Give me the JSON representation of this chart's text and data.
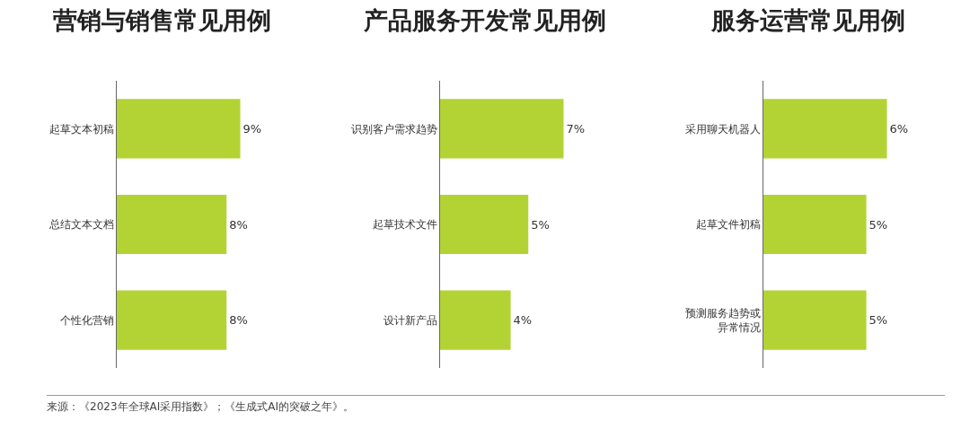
{
  "chart_data": [
    {
      "type": "bar",
      "orientation": "horizontal",
      "title": "营销与销售常见用例",
      "categories": [
        "起草文本初稿",
        "总结文本文档",
        "个性化营销"
      ],
      "values": [
        9,
        8,
        8
      ],
      "value_labels": [
        "9%",
        "8%",
        "8%"
      ],
      "color": "#b3d334",
      "tick_labels": "y",
      "grid": false,
      "legend": false,
      "annotations": [
        "来源：《2023年全球AI采用指数》；《生成式AI的突破之年》。"
      ]
    },
    {
      "type": "bar",
      "orientation": "horizontal",
      "title": "产品服务开发常见用例",
      "categories": [
        "识别客户需求趋势",
        "起草技术文件",
        "设计新产品"
      ],
      "values": [
        7,
        5,
        4
      ],
      "value_labels": [
        "7%",
        "5%",
        "4%"
      ],
      "color": "#b3d334",
      "tick_labels": "y",
      "grid": false,
      "legend": false
    },
    {
      "type": "bar",
      "orientation": "horizontal",
      "title": "服务运营常见用例",
      "categories": [
        "采用聊天机器人",
        "起草文件初稿",
        "预测服务趋势或异常情况"
      ],
      "values": [
        6,
        5,
        5
      ],
      "value_labels": [
        "6%",
        "5%",
        "5%"
      ],
      "color": "#b3d334",
      "tick_labels": "y",
      "grid": false,
      "legend": false
    }
  ]
}
